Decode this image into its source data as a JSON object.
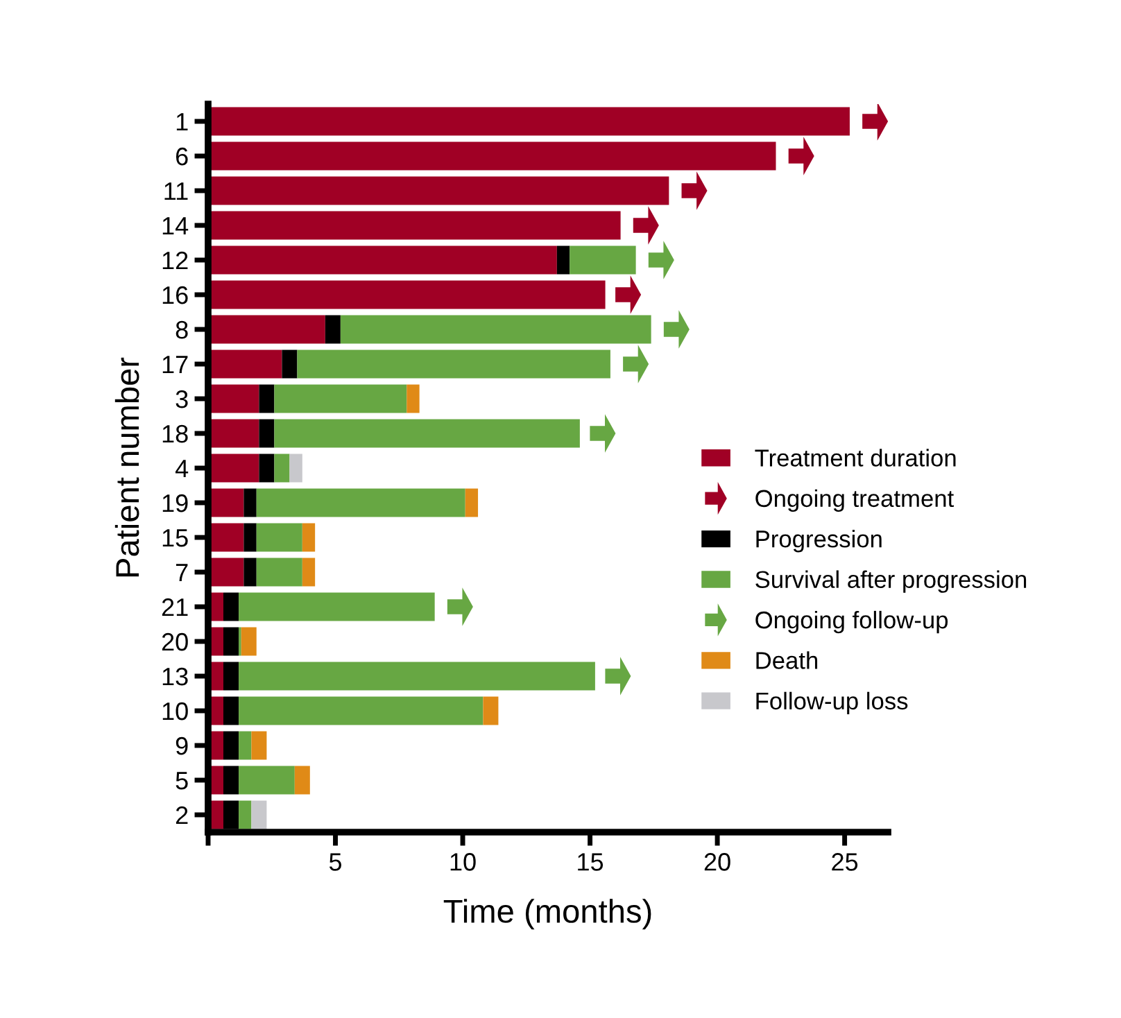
{
  "chart_data": {
    "type": "bar",
    "orientation": "horizontal",
    "stacked": true,
    "xlabel": "Time (months)",
    "ylabel": "Patient number",
    "categories": [
      "1",
      "6",
      "11",
      "14",
      "12",
      "16",
      "8",
      "17",
      "3",
      "18",
      "4",
      "19",
      "15",
      "7",
      "21",
      "20",
      "13",
      "10",
      "9",
      "5",
      "2"
    ],
    "xlim": [
      0,
      26.7
    ],
    "xticks": [
      {
        "value": 0,
        "label": null
      },
      5,
      10,
      15,
      20,
      25
    ],
    "grid": false,
    "legend": "right",
    "series": [
      {
        "name": "Treatment duration",
        "type": "bar",
        "color": "#a00025",
        "values": [
          25.2,
          22.3,
          18.1,
          16.2,
          13.7,
          15.6,
          4.6,
          2.9,
          2.0,
          2.0,
          2.0,
          1.4,
          1.4,
          1.4,
          0.6,
          0.6,
          0.6,
          0.6,
          0.6,
          0.6,
          0.6
        ]
      },
      {
        "name": "Ongoing treatment",
        "type": "scatter",
        "marker": "triangle",
        "color": "#a00025",
        "values": [
          26.2,
          23.3,
          19.1,
          17.2,
          null,
          16.5,
          null,
          null,
          null,
          null,
          null,
          null,
          null,
          null,
          null,
          null,
          null,
          null,
          null,
          null,
          null
        ]
      },
      {
        "name": "Progression",
        "type": "bar",
        "color": "#000000",
        "values": [
          null,
          null,
          null,
          null,
          0.5,
          null,
          0.6,
          0.6,
          0.6,
          0.6,
          0.6,
          0.5,
          0.5,
          0.5,
          0.6,
          0.6,
          0.6,
          0.6,
          0.6,
          0.6,
          0.6
        ]
      },
      {
        "name": "Survival after progression",
        "type": "bar",
        "color": "#67a743",
        "values": [
          null,
          null,
          null,
          null,
          2.6,
          null,
          12.2,
          12.3,
          5.2,
          12.0,
          0.6,
          8.2,
          1.8,
          1.8,
          7.7,
          0.1,
          14.0,
          9.6,
          0.5,
          2.2,
          0.5
        ]
      },
      {
        "name": "Ongoing follow-up",
        "type": "scatter",
        "marker": "triangle",
        "color": "#67a743",
        "values": [
          null,
          null,
          null,
          null,
          17.8,
          null,
          18.4,
          16.8,
          null,
          15.5,
          null,
          null,
          null,
          null,
          9.9,
          null,
          16.1,
          null,
          null,
          null,
          null
        ]
      },
      {
        "name": "Death",
        "type": "bar",
        "color": "#e08a17",
        "values": [
          null,
          null,
          null,
          null,
          null,
          null,
          null,
          null,
          0.5,
          null,
          null,
          0.5,
          0.5,
          0.5,
          null,
          0.6,
          null,
          0.6,
          0.6,
          0.6,
          null
        ]
      },
      {
        "name": "Follow-up loss",
        "type": "bar",
        "color": "#c8c8cc",
        "values": [
          null,
          null,
          null,
          null,
          null,
          null,
          null,
          null,
          null,
          null,
          0.5,
          null,
          null,
          null,
          null,
          null,
          null,
          null,
          null,
          null,
          0.6
        ]
      }
    ]
  }
}
